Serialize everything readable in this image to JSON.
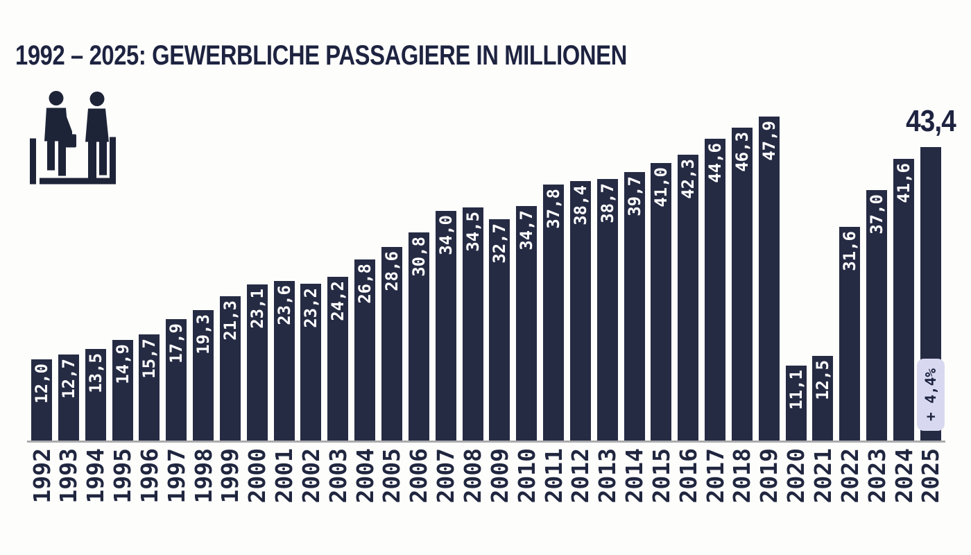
{
  "chart_data": {
    "type": "bar",
    "title": "1992 – 2025: GEWERBLICHE PASSAGIERE IN MILLIONEN",
    "categories": [
      "1992",
      "1993",
      "1994",
      "1995",
      "1996",
      "1997",
      "1998",
      "1999",
      "2000",
      "2001",
      "2002",
      "2003",
      "2004",
      "2005",
      "2006",
      "2007",
      "2008",
      "2009",
      "2010",
      "2011",
      "2012",
      "2013",
      "2014",
      "2015",
      "2016",
      "2017",
      "2018",
      "2019",
      "2020",
      "2021",
      "2022",
      "2023",
      "2024",
      "2025"
    ],
    "values": [
      12.0,
      12.7,
      13.5,
      14.9,
      15.7,
      17.9,
      19.3,
      21.3,
      23.1,
      23.6,
      23.2,
      24.2,
      26.8,
      28.6,
      30.8,
      34.0,
      34.5,
      32.7,
      34.7,
      37.8,
      38.4,
      38.7,
      39.7,
      41.0,
      42.3,
      44.6,
      46.3,
      47.9,
      11.1,
      12.5,
      31.6,
      37.0,
      41.6,
      43.4
    ],
    "value_label_style": "inside-bar-rotated, German decimal comma",
    "highlight": {
      "category": "2025",
      "annotation": "43,4",
      "badge": "+ 4,4%"
    },
    "xlabel": "",
    "ylabel": "Passagiere in Millionen",
    "ylim": [
      0,
      48
    ],
    "grid": false,
    "legend": false,
    "colors": {
      "bar": "#262B44",
      "value_label": "#FFFFFF",
      "title": "#1D2340",
      "axis_line": "#ABABAD",
      "badge_background": "#D8D9F0",
      "badge_text": "#1D2340",
      "background": "#FDFDFB"
    }
  },
  "icons": {
    "passengers": "two-passengers-with-briefcase-pictogram"
  }
}
